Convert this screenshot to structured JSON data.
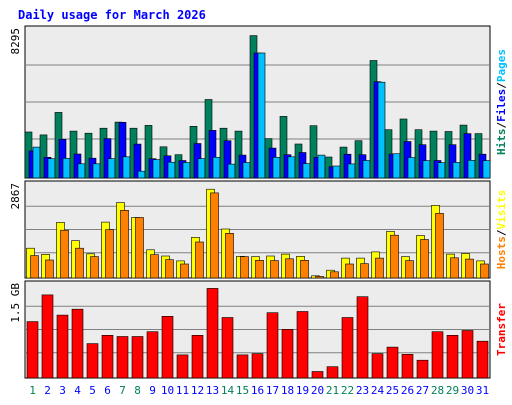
{
  "chart_data": [
    {
      "type": "bar",
      "title": "Daily usage for March 2026",
      "ylabel_parts": [
        {
          "text": "Hits",
          "color": "#00805c"
        },
        {
          "text": "/",
          "color": "#000000"
        },
        {
          "text": "Files",
          "color": "#0000ff"
        },
        {
          "text": "/",
          "color": "#000000"
        },
        {
          "text": "Pages",
          "color": "#00c0ff"
        }
      ],
      "ymax_label": "8295",
      "ylim": [
        0,
        8295
      ],
      "grid": true,
      "categories": [
        "1",
        "2",
        "3",
        "4",
        "5",
        "6",
        "7",
        "8",
        "9",
        "10",
        "11",
        "12",
        "13",
        "14",
        "15",
        "16",
        "17",
        "18",
        "19",
        "20",
        "21",
        "22",
        "23",
        "24",
        "25",
        "26",
        "27",
        "28",
        "29",
        "30",
        "31"
      ],
      "series": [
        {
          "name": "Hits",
          "color": "#00805c",
          "values": [
            2650,
            2480,
            3780,
            2700,
            2580,
            2870,
            3220,
            2870,
            3030,
            1800,
            1340,
            2980,
            4520,
            2870,
            2700,
            8200,
            2270,
            3550,
            1960,
            3010,
            1210,
            1780,
            2150,
            6770,
            2780,
            3400,
            2780,
            2700,
            2680,
            3050,
            2560
          ]
        },
        {
          "name": "Files",
          "color": "#0000ff",
          "values": [
            1560,
            1190,
            2230,
            1380,
            1140,
            2270,
            3210,
            1950,
            1110,
            1280,
            1010,
            1990,
            2740,
            2150,
            1320,
            7200,
            1720,
            1340,
            1470,
            1190,
            650,
            1370,
            1340,
            5550,
            1380,
            2100,
            1920,
            1010,
            1920,
            2560,
            1370
          ]
        },
        {
          "name": "Pages",
          "color": "#00c0ff",
          "values": [
            1780,
            1110,
            1130,
            820,
            820,
            1110,
            1220,
            390,
            1060,
            910,
            890,
            1120,
            1190,
            800,
            890,
            7200,
            1190,
            1220,
            830,
            1320,
            690,
            810,
            1010,
            5520,
            1400,
            1180,
            1000,
            880,
            900,
            1020,
            1000
          ]
        }
      ]
    },
    {
      "type": "bar",
      "ylabel_parts": [
        {
          "text": "Hosts",
          "color": "#ff8000"
        },
        {
          "text": "/",
          "color": "#000000"
        },
        {
          "text": "Visits",
          "color": "#ffff00"
        }
      ],
      "ymax_label": "2867",
      "ylim": [
        0,
        2867
      ],
      "grid": true,
      "categories": [
        "1",
        "2",
        "3",
        "4",
        "5",
        "6",
        "7",
        "8",
        "9",
        "10",
        "11",
        "12",
        "13",
        "14",
        "15",
        "16",
        "17",
        "18",
        "19",
        "20",
        "21",
        "22",
        "23",
        "24",
        "25",
        "26",
        "27",
        "28",
        "29",
        "30",
        "31"
      ],
      "series": [
        {
          "name": "Visits",
          "color": "#ffff00",
          "values": [
            960,
            760,
            1790,
            1200,
            780,
            1800,
            2430,
            1950,
            910,
            710,
            550,
            1310,
            2860,
            1580,
            700,
            690,
            710,
            770,
            700,
            70,
            250,
            640,
            640,
            840,
            1500,
            690,
            1370,
            2340,
            770,
            790,
            550
          ]
        },
        {
          "name": "Hosts",
          "color": "#ff8000",
          "values": [
            720,
            580,
            1540,
            960,
            690,
            1560,
            2180,
            1950,
            750,
            590,
            450,
            1160,
            2740,
            1440,
            690,
            570,
            560,
            620,
            570,
            50,
            200,
            450,
            460,
            640,
            1380,
            560,
            1240,
            2080,
            650,
            610,
            450
          ]
        }
      ]
    },
    {
      "type": "bar",
      "ylabel_parts": [
        {
          "text": "Transfer",
          "color": "#ff0000"
        }
      ],
      "ymax_label": "1.5 GB",
      "ylim": [
        0,
        1.5
      ],
      "grid": true,
      "categories": [
        "1",
        "2",
        "3",
        "4",
        "5",
        "6",
        "7",
        "8",
        "9",
        "10",
        "11",
        "12",
        "13",
        "14",
        "15",
        "16",
        "17",
        "18",
        "19",
        "20",
        "21",
        "22",
        "23",
        "24",
        "25",
        "26",
        "27",
        "28",
        "29",
        "30",
        "31"
      ],
      "series": [
        {
          "name": "Transfer",
          "color": "#ff0000",
          "values": [
            0.95,
            1.4,
            1.06,
            1.16,
            0.58,
            0.72,
            0.7,
            0.7,
            0.78,
            1.04,
            0.39,
            0.72,
            1.51,
            1.02,
            0.39,
            0.41,
            1.1,
            0.82,
            1.12,
            0.11,
            0.19,
            1.02,
            1.37,
            0.41,
            0.52,
            0.4,
            0.3,
            0.78,
            0.72,
            0.8,
            0.62
          ]
        }
      ]
    }
  ],
  "weekend_days": [
    "1",
    "7",
    "8",
    "14",
    "15",
    "21",
    "22",
    "28",
    "29"
  ],
  "colors": {
    "background": "#ffffff",
    "plot_background": "#ececec",
    "grid": "#808080",
    "title": "#0000ff",
    "axis_label_default": "#0000ff",
    "weekend_label": "#00805c",
    "bar_outline": "#000000"
  }
}
